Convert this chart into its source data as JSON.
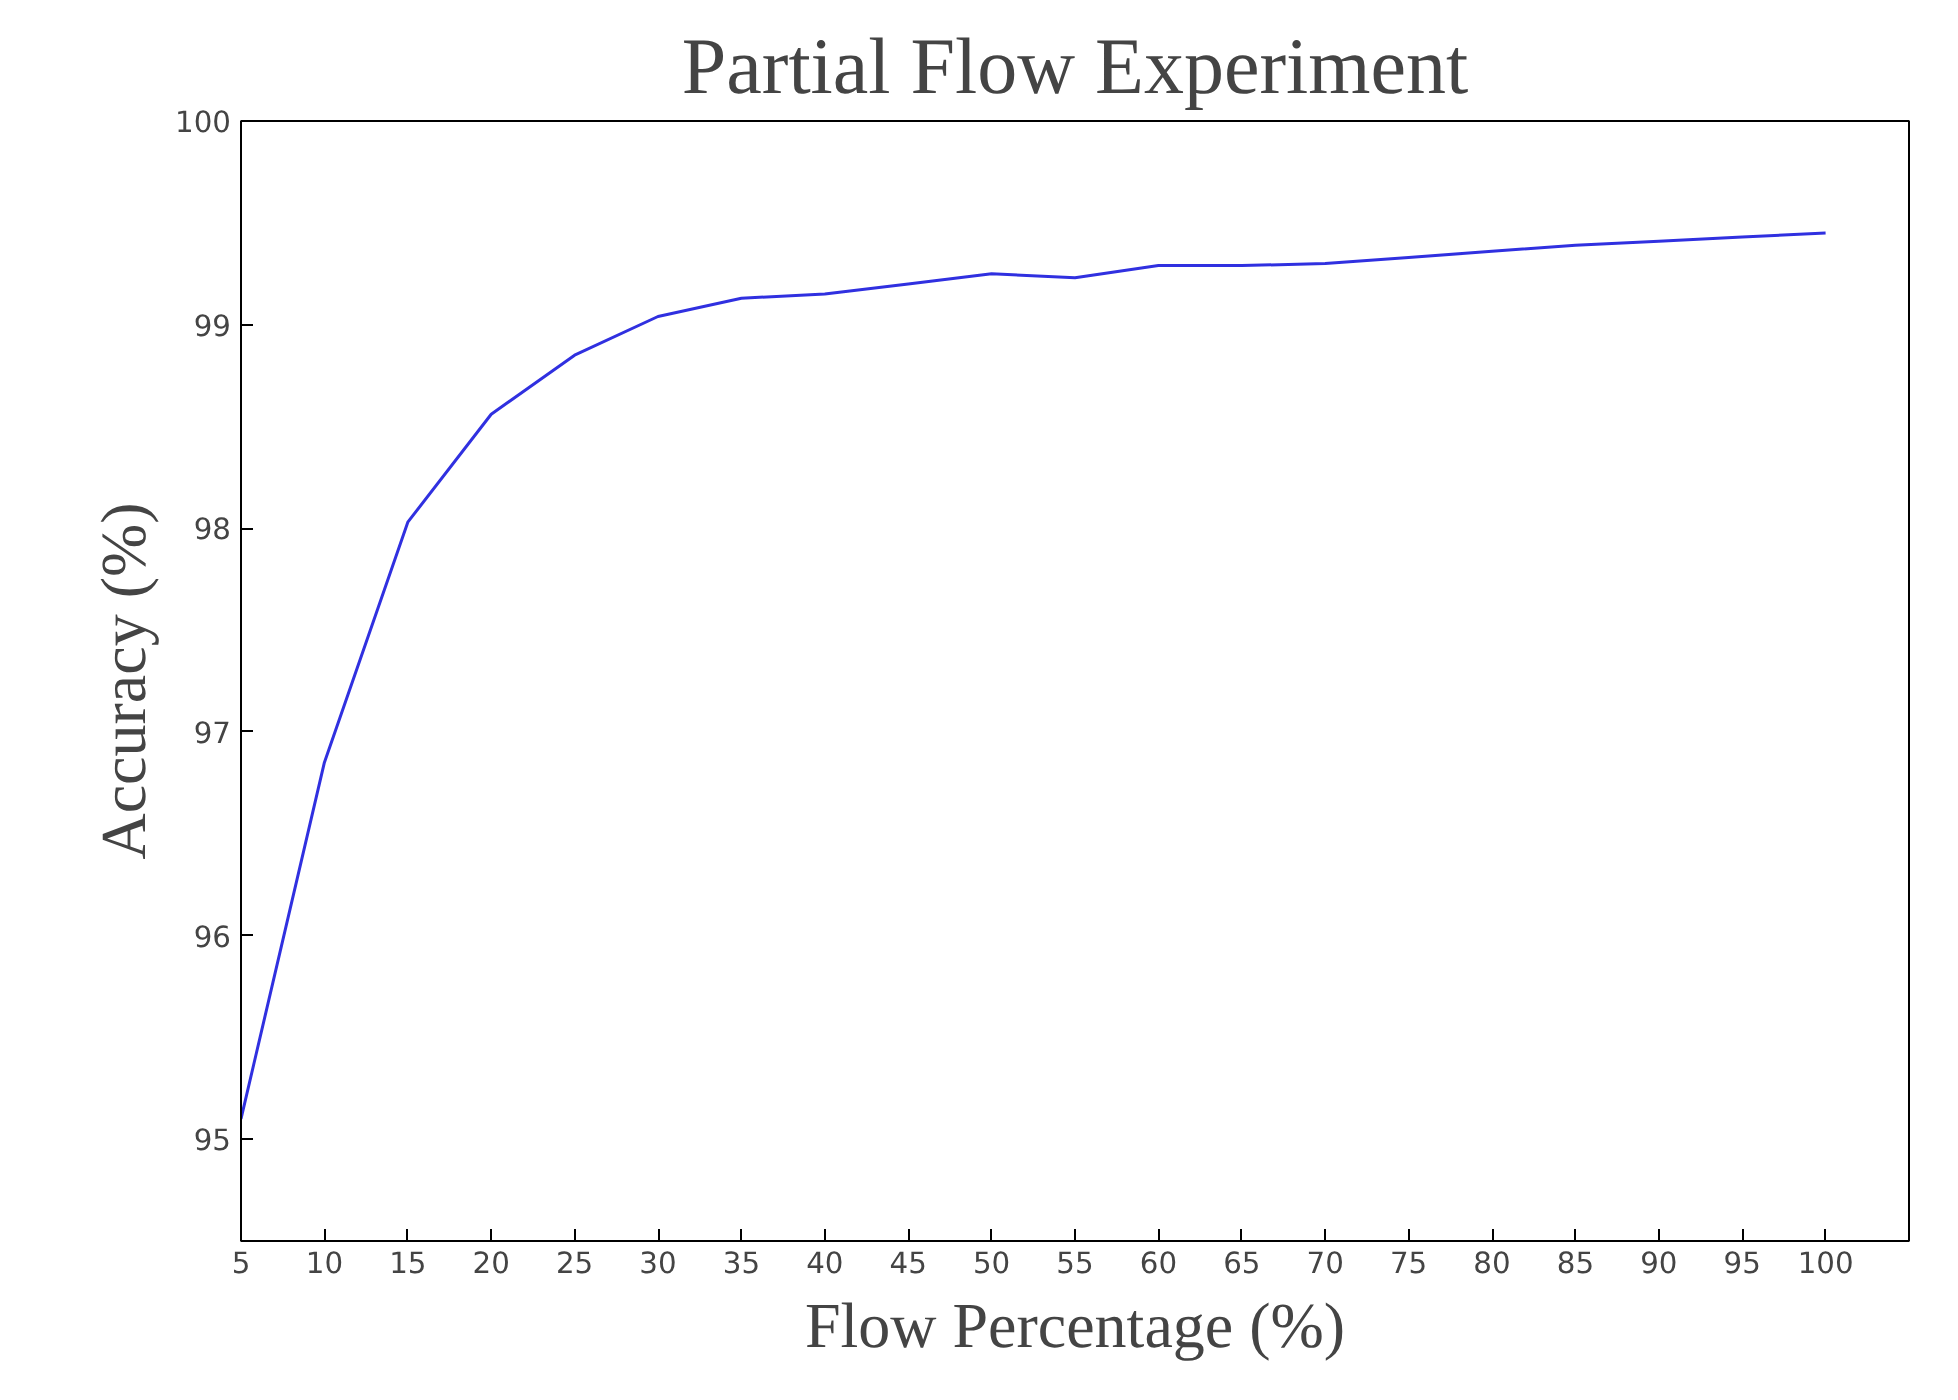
{
  "chart_data": {
    "type": "line",
    "title": "Partial Flow Experiment",
    "xlabel": "Flow Percentage (%)",
    "ylabel": "Accuracy (%)",
    "x": [
      5,
      10,
      15,
      20,
      25,
      30,
      35,
      40,
      45,
      50,
      55,
      60,
      65,
      70,
      75,
      80,
      85,
      90,
      95,
      100
    ],
    "series": [
      {
        "color": "#3030e0",
        "values": [
          95.1,
          96.85,
          98.03,
          98.56,
          98.85,
          99.04,
          99.13,
          99.15,
          99.2,
          99.25,
          99.23,
          99.29,
          99.29,
          99.3,
          99.33,
          99.36,
          99.39,
          99.41,
          99.43,
          99.45
        ]
      }
    ],
    "xlim": [
      5,
      105
    ],
    "ylim": [
      94.5,
      100
    ],
    "xticks": [
      5,
      10,
      15,
      20,
      25,
      30,
      35,
      40,
      45,
      50,
      55,
      60,
      65,
      70,
      75,
      80,
      85,
      90,
      95,
      100
    ],
    "yticks": [
      95,
      96,
      97,
      98,
      99,
      100
    ],
    "marker": "none",
    "line_style": "solid"
  }
}
